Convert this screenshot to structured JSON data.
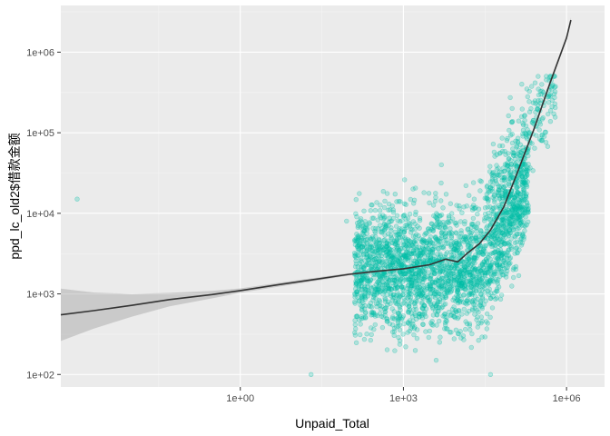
{
  "chart_data": {
    "type": "scatter",
    "title": "",
    "xlabel": "Unpaid_Total",
    "ylabel": "ppd_lc_old2$借款金额",
    "x_scale": "log10",
    "y_scale": "log10",
    "xlim": [
      0.0005,
      5000000
    ],
    "ylim": [
      70,
      3800000
    ],
    "x_ticks": [
      {
        "value": 1,
        "label": "1e+00"
      },
      {
        "value": 1000,
        "label": "1e+03"
      },
      {
        "value": 1000000,
        "label": "1e+06"
      }
    ],
    "y_ticks": [
      {
        "value": 100,
        "label": "1e+02"
      },
      {
        "value": 1000,
        "label": "1e+03"
      },
      {
        "value": 10000,
        "label": "1e+04"
      },
      {
        "value": 100000,
        "label": "1e+05"
      },
      {
        "value": 1000000,
        "label": "1e+06"
      }
    ],
    "grid": true,
    "point_color": "#00BFA8",
    "point_alpha": 0.25,
    "points_sample": [
      {
        "x": 0.001,
        "y": 15000
      },
      {
        "x": 20,
        "y": 100
      },
      {
        "x": 90,
        "y": 8000
      },
      {
        "x": 150,
        "y": 3000
      },
      {
        "x": 250,
        "y": 1500
      },
      {
        "x": 400,
        "y": 700
      },
      {
        "x": 500,
        "y": 2500
      },
      {
        "x": 600,
        "y": 5000
      },
      {
        "x": 800,
        "y": 400
      },
      {
        "x": 1000,
        "y": 3000
      },
      {
        "x": 1500,
        "y": 20000
      },
      {
        "x": 2000,
        "y": 1200
      },
      {
        "x": 3000,
        "y": 6000
      },
      {
        "x": 4000,
        "y": 150
      },
      {
        "x": 5000,
        "y": 40000
      },
      {
        "x": 8000,
        "y": 2500
      },
      {
        "x": 10000,
        "y": 900
      },
      {
        "x": 20000,
        "y": 15000
      },
      {
        "x": 30000,
        "y": 5000
      },
      {
        "x": 40000,
        "y": 100
      },
      {
        "x": 50000,
        "y": 25000
      },
      {
        "x": 80000,
        "y": 80000
      },
      {
        "x": 100000,
        "y": 200000
      },
      {
        "x": 150000,
        "y": 400000
      },
      {
        "x": 200000,
        "y": 100000
      },
      {
        "x": 300000,
        "y": 500000
      },
      {
        "x": 500000,
        "y": 300000
      }
    ],
    "smooth_line": {
      "color": "#333333",
      "band_color": "#999999",
      "x": [
        0.0005,
        0.002,
        0.01,
        0.05,
        0.3,
        1,
        5,
        30,
        100,
        300,
        1000,
        3000,
        6000,
        10000,
        15000,
        25000,
        40000,
        70000,
        120000,
        250000,
        500000,
        1000000,
        1200000
      ],
      "y": [
        550,
        620,
        720,
        850,
        980,
        1100,
        1300,
        1550,
        1750,
        1900,
        2050,
        2300,
        2700,
        2500,
        3200,
        4200,
        6200,
        12000,
        30000,
        110000,
        420000,
        1500000,
        2500000
      ],
      "band_lower": [
        260,
        370,
        520,
        700,
        880,
        1030,
        1230,
        1480,
        1690,
        1850,
        2010,
        2260,
        2660,
        2460,
        3140,
        4100,
        6000,
        11500,
        28500,
        104000,
        395000,
        1400000,
        2300000
      ],
      "band_upper": [
        1160,
        1040,
        1000,
        1030,
        1090,
        1170,
        1370,
        1620,
        1810,
        1950,
        2090,
        2340,
        2740,
        2540,
        3260,
        4300,
        6400,
        12500,
        31500,
        116000,
        445000,
        1600000,
        2700000
      ]
    }
  }
}
